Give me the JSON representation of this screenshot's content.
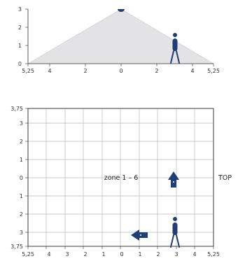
{
  "colors": {
    "accent": "#1f3f73",
    "cone_fill": "#e3e3e6",
    "grid": "#b8b8b8",
    "axis": "#333333"
  },
  "side_view": {
    "y_ticks": [
      "3",
      "2",
      "1",
      "0"
    ],
    "x_ticks": [
      "5,25",
      "4",
      "2",
      "0",
      "2",
      "4",
      "5,25"
    ],
    "icons": [
      "sensor-icon",
      "person-walking-icon"
    ]
  },
  "top_view": {
    "y_ticks": [
      "3,75",
      "3",
      "2",
      "1",
      "0",
      "1",
      "2",
      "3",
      "3,75"
    ],
    "x_ticks": [
      "5,25",
      "4",
      "3",
      "2",
      "1",
      "0",
      "1",
      "2",
      "3",
      "4",
      "5,25"
    ],
    "zone_label": "zone 1 – 6",
    "side_label": "TOP",
    "icons": [
      "arrow-up-icon",
      "arrow-left-icon",
      "person-walking-icon"
    ]
  }
}
